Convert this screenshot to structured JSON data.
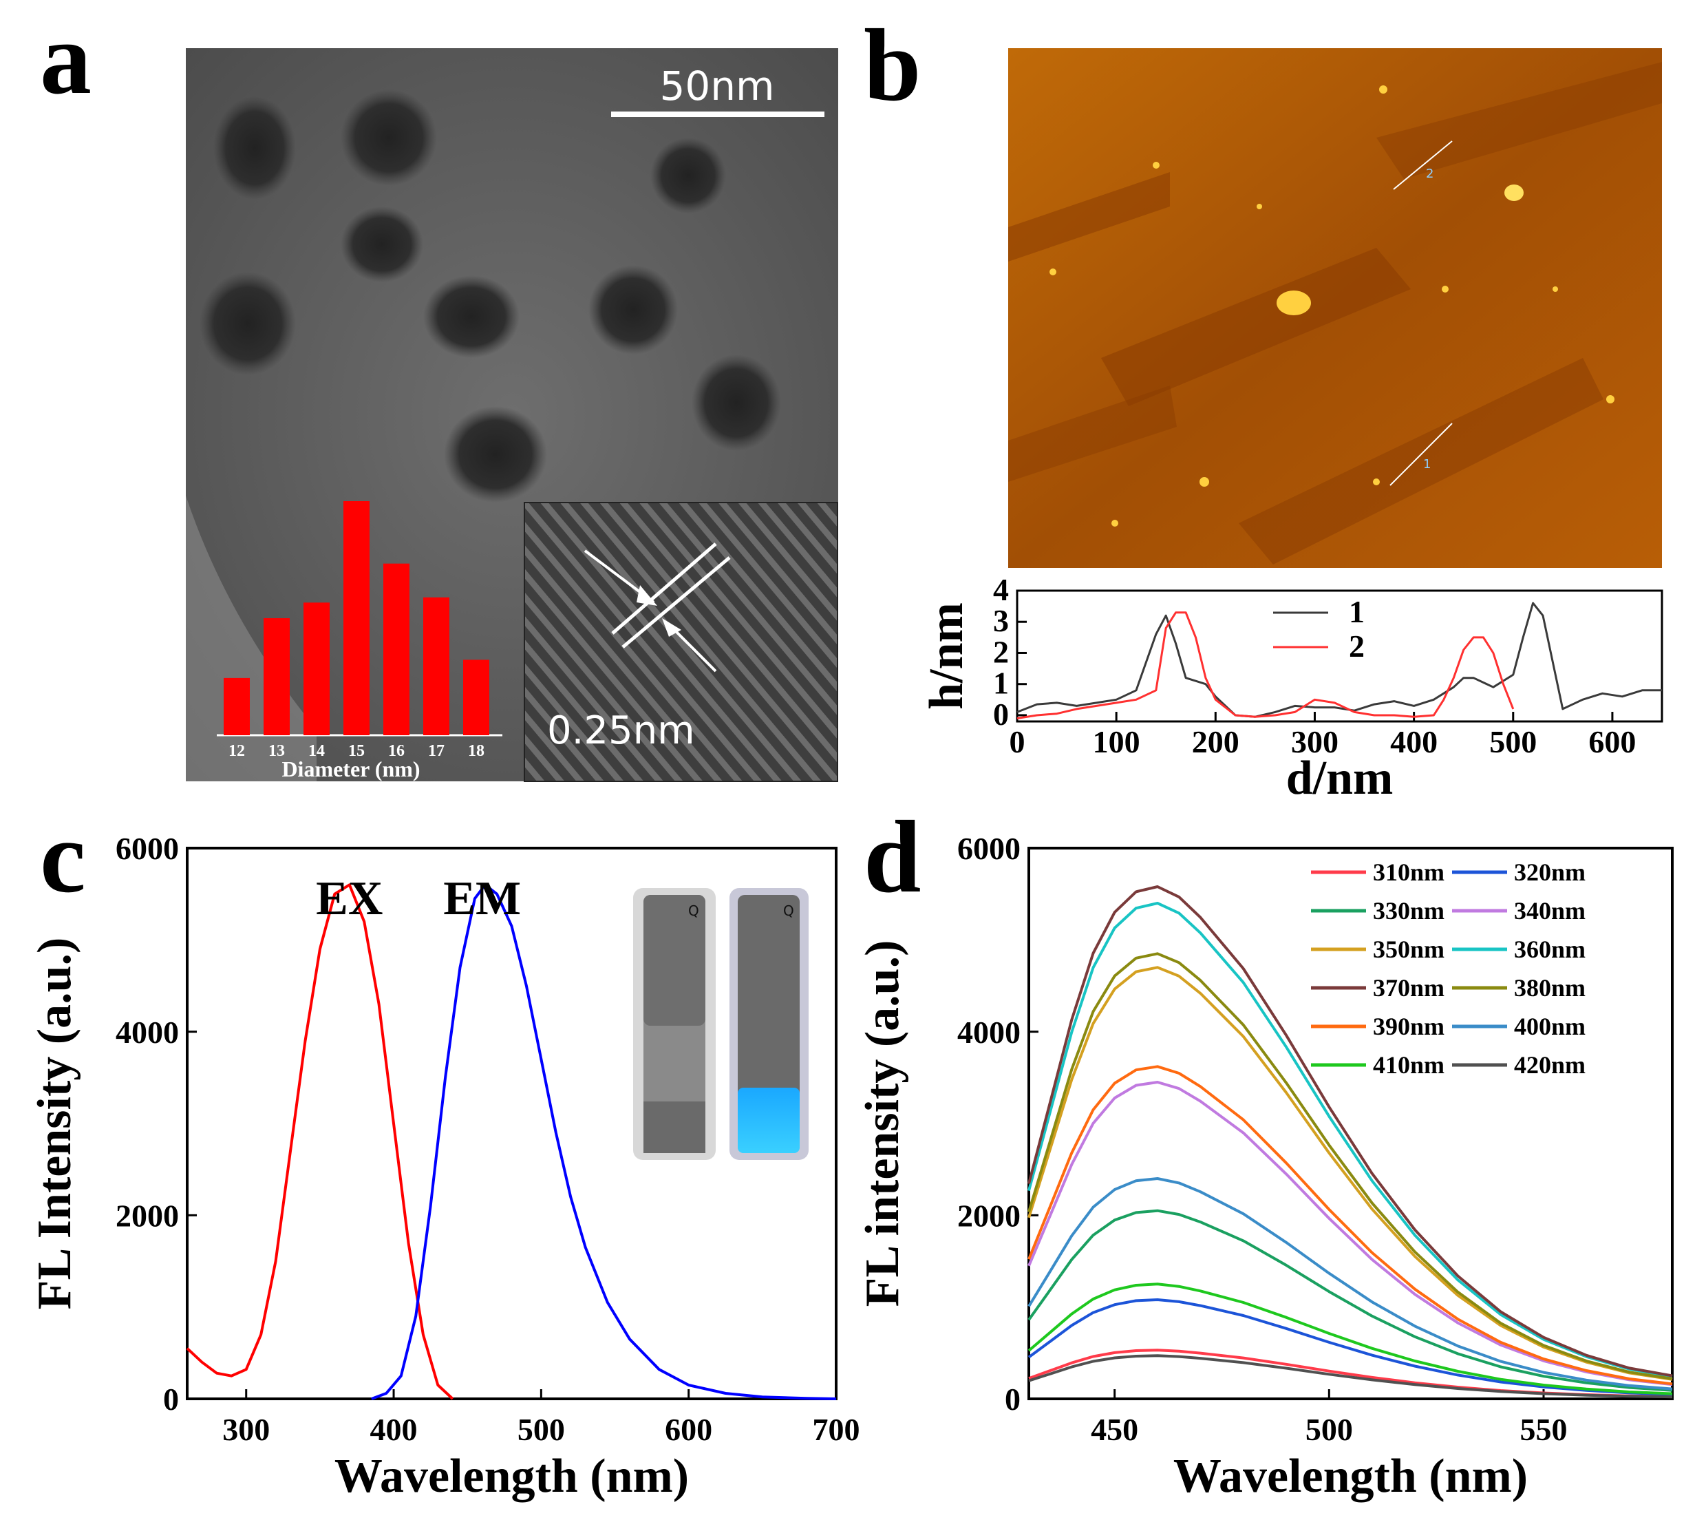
{
  "panels": {
    "a": "a",
    "b": "b",
    "c": "c",
    "d": "d"
  },
  "panel_a": {
    "scale_bar": "50nm",
    "lattice_label": "0.25nm",
    "histogram": {
      "type": "bar",
      "categories": [
        "12",
        "13",
        "14",
        "15",
        "16",
        "17",
        "18"
      ],
      "values": [
        2.2,
        4.5,
        5.1,
        9.0,
        6.6,
        5.3,
        2.9
      ],
      "xlabel": "Diameter (nm)",
      "bar_color": "#ff0000"
    }
  },
  "panel_b": {
    "line_labels": [
      "1",
      "2"
    ],
    "profile": {
      "type": "line",
      "xlabel": "d/nm",
      "ylabel": "h/nm",
      "xlim": [
        0,
        650
      ],
      "ylim": [
        -0.2,
        4
      ],
      "xticks": [
        "0",
        "100",
        "200",
        "300",
        "400",
        "500",
        "600"
      ],
      "yticks": [
        "0",
        "1",
        "2",
        "3",
        "4"
      ],
      "series": [
        {
          "name": "1",
          "color": "#3a3a3a",
          "x": [
            0,
            20,
            40,
            60,
            80,
            100,
            120,
            140,
            150,
            160,
            170,
            190,
            200,
            220,
            240,
            260,
            280,
            300,
            320,
            340,
            360,
            380,
            400,
            420,
            440,
            450,
            460,
            480,
            500,
            510,
            520,
            530,
            550,
            570,
            590,
            610,
            630,
            650
          ],
          "y": [
            0.1,
            0.35,
            0.4,
            0.3,
            0.4,
            0.5,
            0.8,
            2.6,
            3.2,
            2.3,
            1.2,
            1.0,
            0.6,
            0.0,
            -0.05,
            0.1,
            0.3,
            0.25,
            0.25,
            0.15,
            0.35,
            0.45,
            0.3,
            0.5,
            0.9,
            1.2,
            1.2,
            0.9,
            1.3,
            2.5,
            3.6,
            3.2,
            0.2,
            0.5,
            0.7,
            0.6,
            0.8,
            0.8
          ]
        },
        {
          "name": "2",
          "color": "#ff3030",
          "x": [
            0,
            20,
            40,
            60,
            80,
            100,
            120,
            140,
            150,
            160,
            170,
            180,
            190,
            200,
            220,
            240,
            260,
            280,
            300,
            320,
            340,
            360,
            380,
            400,
            420,
            430,
            440,
            450,
            460,
            470,
            480,
            490,
            500
          ],
          "y": [
            -0.1,
            0.0,
            0.05,
            0.2,
            0.3,
            0.4,
            0.5,
            0.8,
            2.8,
            3.3,
            3.3,
            2.5,
            1.2,
            0.5,
            0.0,
            -0.05,
            0.0,
            0.1,
            0.5,
            0.4,
            0.1,
            0.0,
            0.0,
            -0.05,
            0.0,
            0.5,
            1.2,
            2.1,
            2.5,
            2.5,
            2.0,
            1.0,
            0.2
          ]
        }
      ]
    }
  },
  "panel_c": {
    "chart_data": {
      "type": "line",
      "xlabel": "Wavelength (nm)",
      "ylabel": "FL Intensity (a.u.)",
      "xlim": [
        260,
        700
      ],
      "ylim": [
        0,
        6000
      ],
      "xticks": [
        "300",
        "400",
        "500",
        "600",
        "700"
      ],
      "yticks": [
        "0",
        "2000",
        "4000",
        "6000"
      ],
      "annotations": [
        "EX",
        "EM"
      ],
      "series": [
        {
          "name": "EX",
          "color": "#ff0000",
          "x": [
            260,
            270,
            280,
            290,
            300,
            310,
            320,
            330,
            340,
            350,
            360,
            370,
            380,
            390,
            400,
            410,
            420,
            430,
            440
          ],
          "y": [
            550,
            400,
            280,
            250,
            320,
            700,
            1500,
            2700,
            3900,
            4900,
            5500,
            5600,
            5200,
            4300,
            3000,
            1700,
            700,
            150,
            0
          ]
        },
        {
          "name": "EM",
          "color": "#0000ff",
          "x": [
            385,
            395,
            405,
            415,
            425,
            435,
            445,
            455,
            462,
            470,
            480,
            490,
            500,
            510,
            520,
            530,
            545,
            560,
            580,
            600,
            625,
            650,
            680,
            700
          ],
          "y": [
            0,
            60,
            250,
            900,
            2100,
            3500,
            4700,
            5450,
            5600,
            5500,
            5150,
            4500,
            3700,
            2900,
            2200,
            1650,
            1050,
            650,
            320,
            150,
            60,
            20,
            5,
            0
          ]
        }
      ]
    }
  },
  "panel_d": {
    "chart_data": {
      "type": "line",
      "xlabel": "Wavelength (nm)",
      "ylabel": "FL intensity (a.u.)",
      "xlim": [
        430,
        580
      ],
      "ylim": [
        0,
        6000
      ],
      "xticks": [
        "450",
        "500",
        "550"
      ],
      "yticks": [
        "0",
        "2000",
        "4000",
        "6000"
      ],
      "x": [
        430,
        435,
        440,
        445,
        450,
        455,
        460,
        465,
        470,
        480,
        490,
        500,
        510,
        520,
        530,
        540,
        550,
        560,
        570,
        580
      ],
      "shape": [
        0.42,
        0.58,
        0.74,
        0.87,
        0.95,
        0.99,
        1.0,
        0.98,
        0.94,
        0.84,
        0.71,
        0.57,
        0.44,
        0.33,
        0.24,
        0.17,
        0.12,
        0.085,
        0.06,
        0.045
      ],
      "series": [
        {
          "name": "310nm",
          "peak": 530,
          "color": "#ff3b4a"
        },
        {
          "name": "320nm",
          "peak": 1080,
          "color": "#1c54d8"
        },
        {
          "name": "330nm",
          "peak": 2050,
          "color": "#1aa060"
        },
        {
          "name": "340nm",
          "peak": 3450,
          "color": "#c07ae0"
        },
        {
          "name": "350nm",
          "peak": 4700,
          "color": "#d4a020"
        },
        {
          "name": "360nm",
          "peak": 5400,
          "color": "#18c4c4"
        },
        {
          "name": "370nm",
          "peak": 5580,
          "color": "#7a3a3a"
        },
        {
          "name": "380nm",
          "peak": 4850,
          "color": "#8a8a10"
        },
        {
          "name": "390nm",
          "peak": 3620,
          "color": "#ff6a10"
        },
        {
          "name": "400nm",
          "peak": 2400,
          "color": "#3a8cc8"
        },
        {
          "name": "410nm",
          "peak": 1250,
          "color": "#1ec81e"
        },
        {
          "name": "420nm",
          "peak": 470,
          "color": "#505050"
        }
      ]
    }
  }
}
